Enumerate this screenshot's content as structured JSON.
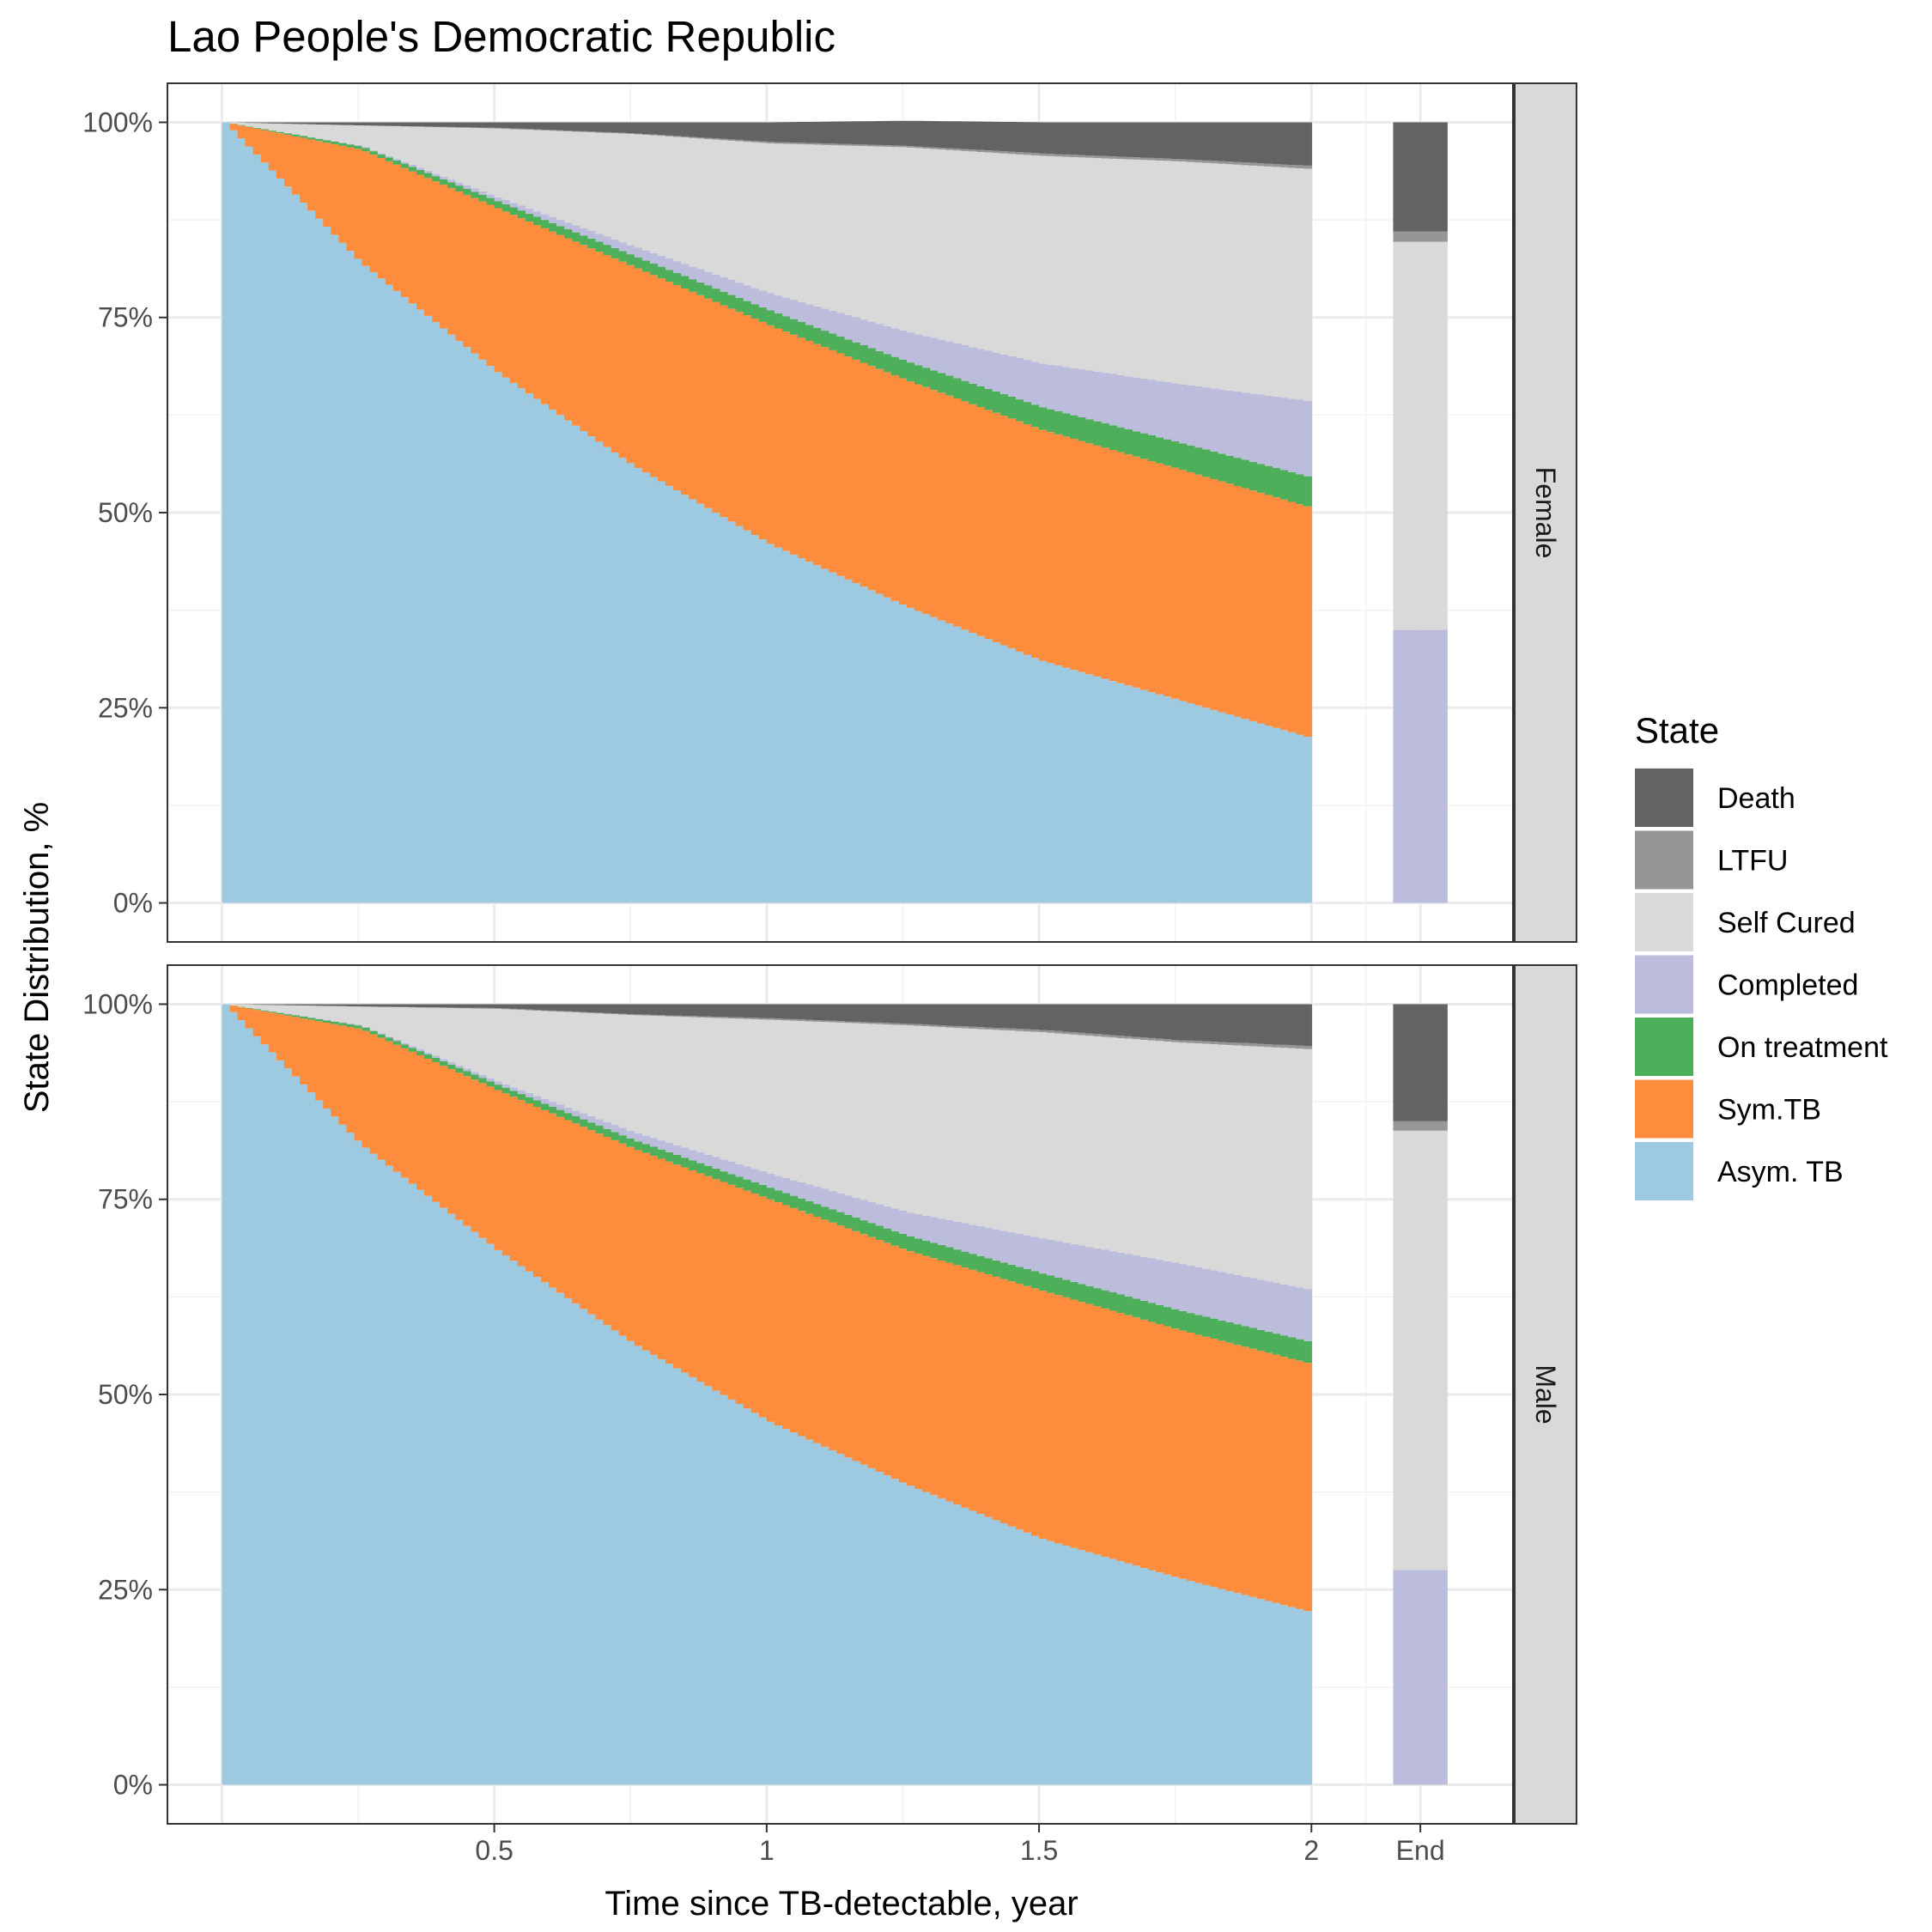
{
  "chart_data": {
    "type": "area",
    "title": "Lao People's Democratic Republic",
    "xlabel": "Time since TB-detectable, year",
    "ylabel": "State Distribution, %",
    "x_ticks": [
      "0.5",
      "1",
      "1.5",
      "2",
      "End"
    ],
    "y_ticks": [
      "0%",
      "25%",
      "50%",
      "75%",
      "100%"
    ],
    "xlim": [
      -0.1,
      2.37
    ],
    "ylim": [
      -0.05,
      1.05
    ],
    "grid": true,
    "legend_title": "State",
    "legend_position": "right",
    "stack_order": [
      "Asym. TB",
      "Sym.TB",
      "On treatment",
      "Completed",
      "Self Cured",
      "LTFU",
      "Death"
    ],
    "series_colors": {
      "Death": "#636363",
      "LTFU": "#969696",
      "Self Cured": "#d9d9d9",
      "Completed": "#bcbddc",
      "On treatment": "#4daf5a",
      "Sym.TB": "#fd8d3c",
      "Asym. TB": "#9ecae1"
    },
    "x": [
      0,
      0.25,
      0.5,
      0.75,
      1.0,
      1.25,
      1.5,
      1.75,
      2.0
    ],
    "panels": [
      {
        "strip": "Female",
        "series": [
          {
            "name": "Asym. TB",
            "values": [
              1.0,
              0.82,
              0.68,
              0.56,
              0.46,
              0.38,
              0.31,
              0.26,
              0.21
            ]
          },
          {
            "name": "Sym.TB",
            "values": [
              0.0,
              0.145,
              0.21,
              0.255,
              0.28,
              0.29,
              0.296,
              0.296,
              0.295
            ]
          },
          {
            "name": "On treatment",
            "values": [
              0.0,
              0.004,
              0.009,
              0.014,
              0.019,
              0.024,
              0.029,
              0.034,
              0.039
            ]
          },
          {
            "name": "Completed",
            "values": [
              0.0,
              0.001,
              0.005,
              0.012,
              0.022,
              0.038,
              0.056,
              0.075,
              0.098
            ]
          },
          {
            "name": "Self Cured",
            "values": [
              0.0,
              0.026,
              0.088,
              0.144,
              0.192,
              0.236,
              0.266,
              0.285,
              0.298
            ]
          },
          {
            "name": "LTFU",
            "values": [
              0.0,
              0.0,
              0.001,
              0.001,
              0.002,
              0.002,
              0.003,
              0.003,
              0.004
            ]
          },
          {
            "name": "Death",
            "values": [
              0.0,
              0.004,
              0.007,
              0.014,
              0.025,
              0.032,
              0.04,
              0.047,
              0.056
            ]
          }
        ],
        "end": {
          "Death": 0.14,
          "LTFU": 0.013,
          "Self Cured": 0.497,
          "Completed": 0.35
        }
      },
      {
        "strip": "Male",
        "series": [
          {
            "name": "Asym. TB",
            "values": [
              1.0,
              0.82,
              0.685,
              0.565,
              0.465,
              0.385,
              0.315,
              0.265,
              0.22
            ]
          },
          {
            "name": "Sym.TB",
            "values": [
              0.0,
              0.148,
              0.205,
              0.25,
              0.285,
              0.3,
              0.318,
              0.318,
              0.318
            ]
          },
          {
            "name": "On treatment",
            "values": [
              0.0,
              0.004,
              0.007,
              0.011,
              0.015,
              0.019,
              0.022,
              0.025,
              0.028
            ]
          },
          {
            "name": "Completed",
            "values": [
              0.0,
              0.001,
              0.004,
              0.01,
              0.018,
              0.03,
              0.045,
              0.06,
              0.067
            ]
          },
          {
            "name": "Self Cured",
            "values": [
              0.0,
              0.024,
              0.093,
              0.15,
              0.197,
              0.239,
              0.264,
              0.283,
              0.309
            ]
          },
          {
            "name": "LTFU",
            "values": [
              0.0,
              0.0,
              0.001,
              0.001,
              0.002,
              0.002,
              0.003,
              0.003,
              0.004
            ]
          },
          {
            "name": "Death",
            "values": [
              0.0,
              0.003,
              0.005,
              0.013,
              0.018,
              0.025,
              0.033,
              0.046,
              0.054
            ]
          }
        ],
        "end": {
          "Death": 0.15,
          "LTFU": 0.012,
          "Self Cured": 0.563,
          "Completed": 0.275
        }
      }
    ]
  }
}
